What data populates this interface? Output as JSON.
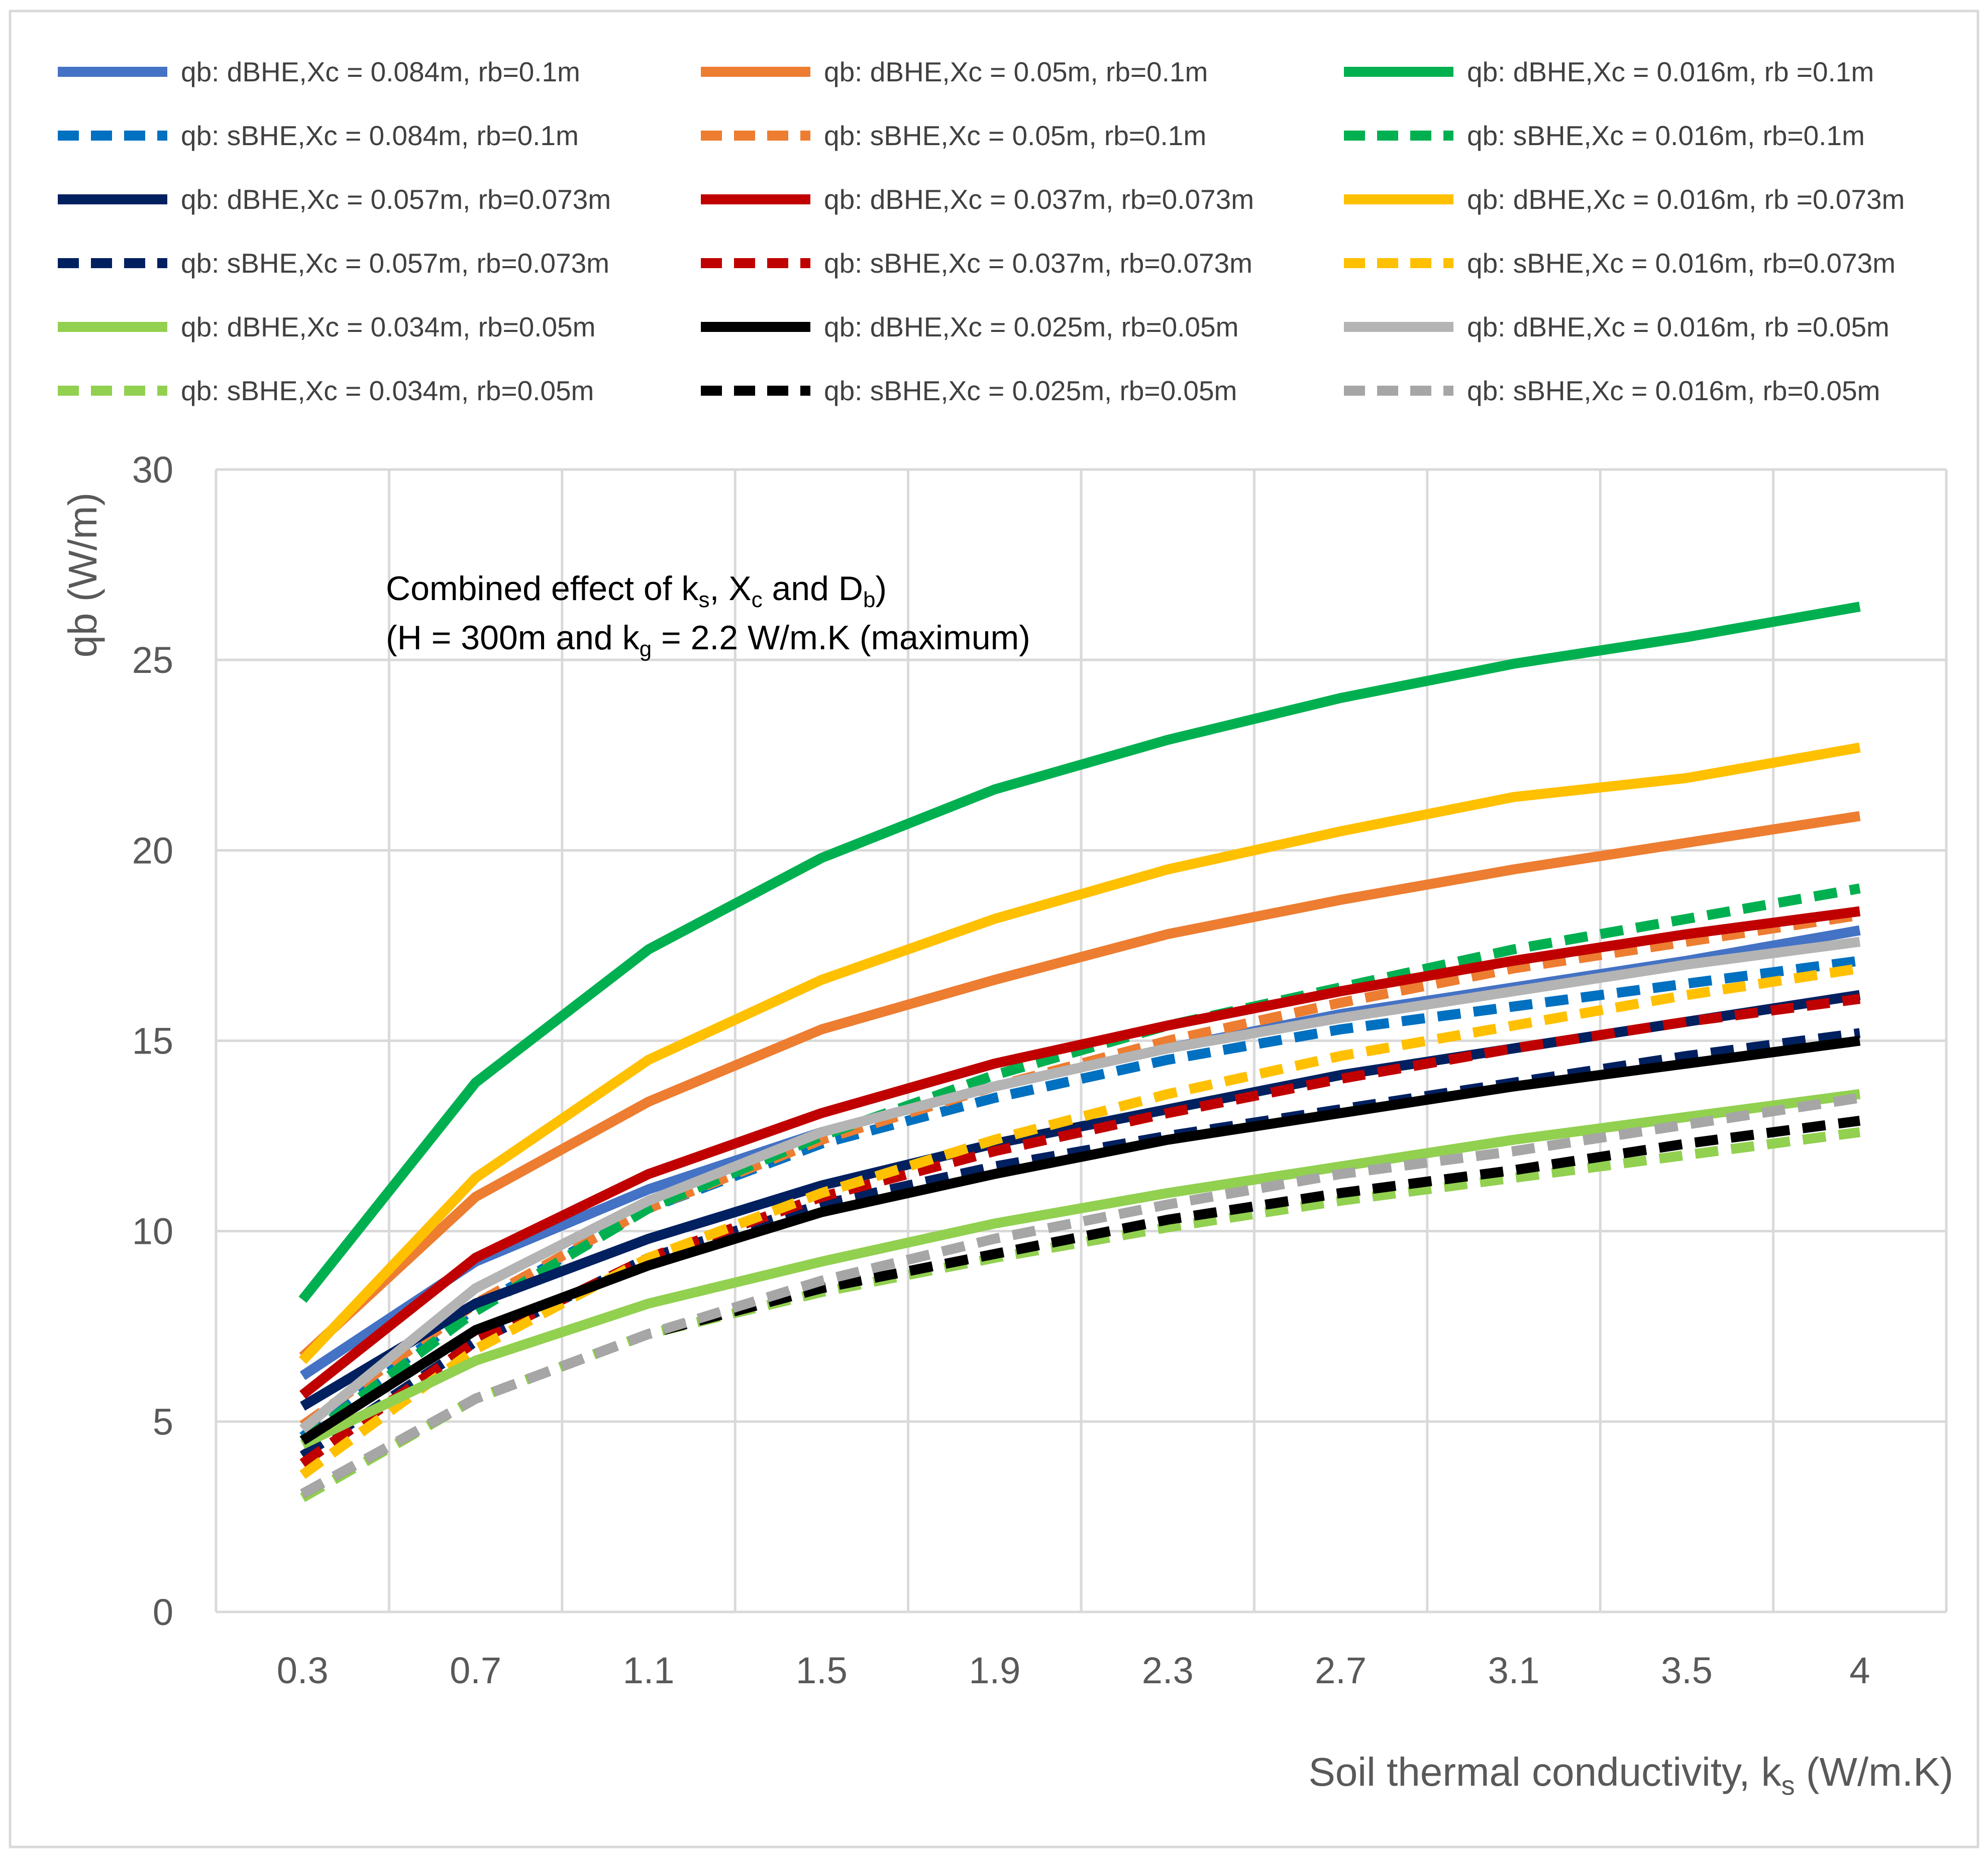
{
  "chart_data": {
    "type": "line",
    "title": "",
    "xlabel": "Soil thermal conductivity, k",
    "xlabel_sub": "s",
    "xlabel_tail": " (W/m.K)",
    "ylabel": "qb (W/m)",
    "categories": [
      "0.3",
      "0.7",
      "1.1",
      "1.5",
      "1.9",
      "2.3",
      "2.7",
      "3.1",
      "3.5",
      "4"
    ],
    "ylim": [
      0,
      30
    ],
    "yticks": [
      "0",
      "5",
      "10",
      "15",
      "20",
      "25",
      "30"
    ],
    "grid": true,
    "legend_position": "top",
    "annotation": {
      "line1_a": "Combined effect of k",
      "line1_sub1": "s",
      "line1_b": ", X",
      "line1_sub2": "c",
      "line1_c": " and D",
      "line1_sub3": "b",
      "line1_d": ")",
      "line2_a": "(H = 300m and k",
      "line2_sub": "g",
      "line2_b": " = 2.2 W/m.K  (maximum)"
    },
    "series": [
      {
        "name": "qb: dBHE,Xc = 0.084m, rb=0.1m",
        "color": "#4472C4",
        "dashed": false,
        "values": [
          6.2,
          9.2,
          11.1,
          12.6,
          13.8,
          14.8,
          15.7,
          16.4,
          17.1,
          17.9
        ]
      },
      {
        "name": "qb: dBHE,Xc = 0.05m, rb=0.1m",
        "color": "#ED7D31",
        "dashed": false,
        "values": [
          6.7,
          10.9,
          13.4,
          15.3,
          16.6,
          17.8,
          18.7,
          19.5,
          20.2,
          20.9
        ]
      },
      {
        "name": "qb: dBHE,Xc = 0.016m, rb =0.1m",
        "color": "#00B050",
        "dashed": false,
        "values": [
          8.2,
          13.9,
          17.4,
          19.8,
          21.6,
          22.9,
          24.0,
          24.9,
          25.6,
          26.4
        ]
      },
      {
        "name": "qb: sBHE,Xc = 0.084m, rb=0.1m",
        "color": "#0070C0",
        "dashed": true,
        "values": [
          4.6,
          8.0,
          10.6,
          12.3,
          13.5,
          14.5,
          15.3,
          15.9,
          16.5,
          17.1
        ]
      },
      {
        "name": "qb: sBHE,Xc = 0.05m, rb=0.1m",
        "color": "#ED7D31",
        "dashed": true,
        "values": [
          4.9,
          8.1,
          10.6,
          12.4,
          13.8,
          15.0,
          16.0,
          16.9,
          17.6,
          18.3
        ]
      },
      {
        "name": "qb: sBHE,Xc = 0.016m, rb=0.1m",
        "color": "#00B050",
        "dashed": true,
        "values": [
          4.5,
          7.9,
          10.6,
          12.5,
          14.1,
          15.4,
          16.4,
          17.4,
          18.2,
          19.0
        ]
      },
      {
        "name": "qb: dBHE,Xc = 0.057m, rb=0.073m",
        "color": "#002060",
        "dashed": false,
        "values": [
          5.4,
          8.1,
          9.8,
          11.2,
          12.3,
          13.2,
          14.1,
          14.8,
          15.5,
          16.2
        ]
      },
      {
        "name": "qb: dBHE,Xc = 0.037m, rb=0.073m",
        "color": "#C00000",
        "dashed": false,
        "values": [
          5.7,
          9.3,
          11.5,
          13.1,
          14.4,
          15.4,
          16.3,
          17.1,
          17.8,
          18.4
        ]
      },
      {
        "name": "qb: dBHE,Xc = 0.016m, rb =0.073m",
        "color": "#FFC000",
        "dashed": false,
        "values": [
          6.6,
          11.4,
          14.5,
          16.6,
          18.2,
          19.5,
          20.5,
          21.4,
          21.9,
          22.7
        ]
      },
      {
        "name": "qb: sBHE,Xc = 0.057m, rb=0.073m",
        "color": "#002060",
        "dashed": true,
        "values": [
          4.1,
          7.1,
          9.3,
          10.7,
          11.7,
          12.5,
          13.2,
          13.9,
          14.6,
          15.2
        ]
      },
      {
        "name": "qb: sBHE,Xc = 0.037m, rb=0.073m",
        "color": "#C00000",
        "dashed": true,
        "values": [
          3.9,
          7.1,
          9.3,
          10.9,
          12.1,
          13.1,
          14.0,
          14.8,
          15.5,
          16.1
        ]
      },
      {
        "name": "qb: sBHE,Xc = 0.016m, rb=0.073m",
        "color": "#FFC000",
        "dashed": true,
        "values": [
          3.6,
          6.9,
          9.3,
          11.0,
          12.4,
          13.6,
          14.6,
          15.4,
          16.2,
          16.9
        ]
      },
      {
        "name": "qb: dBHE,Xc = 0.034m, rb=0.05m",
        "color": "#92D050",
        "dashed": false,
        "values": [
          4.4,
          6.6,
          8.1,
          9.2,
          10.2,
          11.0,
          11.7,
          12.4,
          13.0,
          13.6
        ]
      },
      {
        "name": "qb: dBHE,Xc = 0.025m, rb=0.05m",
        "color": "#000000",
        "dashed": false,
        "values": [
          4.5,
          7.4,
          9.1,
          10.5,
          11.5,
          12.4,
          13.1,
          13.8,
          14.4,
          15.0
        ]
      },
      {
        "name": "qb: dBHE,Xc = 0.016m, rb =0.05m",
        "color": "#B4B4B4",
        "dashed": false,
        "values": [
          4.8,
          8.5,
          10.8,
          12.6,
          13.8,
          14.8,
          15.6,
          16.3,
          17.0,
          17.6
        ]
      },
      {
        "name": "qb: sBHE,Xc = 0.034m, rb=0.05m",
        "color": "#92D050",
        "dashed": true,
        "values": [
          3.0,
          5.6,
          7.3,
          8.4,
          9.3,
          10.1,
          10.8,
          11.4,
          12.0,
          12.6
        ]
      },
      {
        "name": "qb: sBHE,Xc = 0.025m, rb=0.05m",
        "color": "#000000",
        "dashed": true,
        "values": [
          3.1,
          5.6,
          7.3,
          8.5,
          9.4,
          10.3,
          11.0,
          11.6,
          12.3,
          12.9
        ]
      },
      {
        "name": "qb: sBHE,Xc = 0.016m, rb=0.05m",
        "color": "#A6A6A6",
        "dashed": true,
        "values": [
          3.1,
          5.6,
          7.3,
          8.7,
          9.8,
          10.7,
          11.5,
          12.1,
          12.8,
          13.5
        ]
      }
    ]
  }
}
